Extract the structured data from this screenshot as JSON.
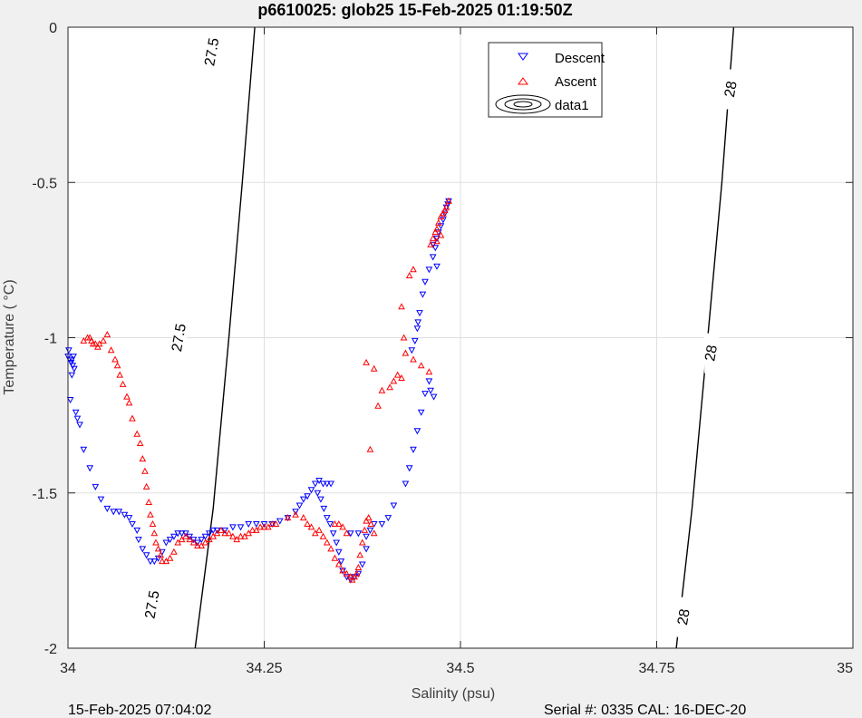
{
  "chart_data": {
    "type": "scatter",
    "title": "p6610025: glob25 15-Feb-2025 01:19:50Z",
    "xlabel": "Salinity (psu)",
    "ylabel": "Temperature (   °C)",
    "xlim": [
      34,
      35
    ],
    "ylim": [
      -2,
      0
    ],
    "x_ticks": [
      34,
      34.25,
      34.5,
      34.75,
      35
    ],
    "x_tick_labels": [
      "34",
      "34.25",
      "34.5",
      "34.75",
      "35"
    ],
    "y_ticks": [
      0,
      -0.5,
      -1,
      -1.5,
      -2
    ],
    "y_tick_labels": [
      "0",
      "-0.5",
      "-1",
      "-1.5",
      "-2"
    ],
    "grid": true,
    "legend_position": "top-right",
    "legend": [
      "Descent",
      "Ascent",
      "data1"
    ],
    "series": [
      {
        "name": "Descent",
        "marker": "triangle-down",
        "color": "#0000ff",
        "points": [
          [
            34.0,
            -1.06
          ],
          [
            34.002,
            -1.07
          ],
          [
            34.004,
            -1.08
          ],
          [
            34.003,
            -1.2
          ],
          [
            34.005,
            -1.07
          ],
          [
            34.006,
            -1.09
          ],
          [
            34.001,
            -1.04
          ],
          [
            34.007,
            -1.06
          ],
          [
            34.008,
            -1.1
          ],
          [
            34.005,
            -1.12
          ],
          [
            34.01,
            -1.24
          ],
          [
            34.012,
            -1.26
          ],
          [
            34.015,
            -1.28
          ],
          [
            34.02,
            -1.36
          ],
          [
            34.028,
            -1.42
          ],
          [
            34.035,
            -1.48
          ],
          [
            34.042,
            -1.52
          ],
          [
            34.05,
            -1.55
          ],
          [
            34.058,
            -1.56
          ],
          [
            34.065,
            -1.56
          ],
          [
            34.072,
            -1.57
          ],
          [
            34.078,
            -1.58
          ],
          [
            34.082,
            -1.6
          ],
          [
            34.088,
            -1.62
          ],
          [
            34.09,
            -1.65
          ],
          [
            34.095,
            -1.68
          ],
          [
            34.1,
            -1.7
          ],
          [
            34.105,
            -1.72
          ],
          [
            34.11,
            -1.72
          ],
          [
            34.115,
            -1.71
          ],
          [
            34.12,
            -1.69
          ],
          [
            34.125,
            -1.66
          ],
          [
            34.13,
            -1.65
          ],
          [
            34.135,
            -1.64
          ],
          [
            34.14,
            -1.63
          ],
          [
            34.145,
            -1.63
          ],
          [
            34.15,
            -1.63
          ],
          [
            34.155,
            -1.64
          ],
          [
            34.16,
            -1.65
          ],
          [
            34.165,
            -1.66
          ],
          [
            34.17,
            -1.65
          ],
          [
            34.175,
            -1.64
          ],
          [
            34.18,
            -1.63
          ],
          [
            34.185,
            -1.62
          ],
          [
            34.19,
            -1.62
          ],
          [
            34.2,
            -1.62
          ],
          [
            34.21,
            -1.61
          ],
          [
            34.22,
            -1.61
          ],
          [
            34.23,
            -1.6
          ],
          [
            34.24,
            -1.6
          ],
          [
            34.25,
            -1.6
          ],
          [
            34.26,
            -1.6
          ],
          [
            34.27,
            -1.59
          ],
          [
            34.28,
            -1.58
          ],
          [
            34.29,
            -1.56
          ],
          [
            34.295,
            -1.54
          ],
          [
            34.3,
            -1.52
          ],
          [
            34.305,
            -1.51
          ],
          [
            34.31,
            -1.49
          ],
          [
            34.315,
            -1.47
          ],
          [
            34.32,
            -1.46
          ],
          [
            34.325,
            -1.47
          ],
          [
            34.33,
            -1.47
          ],
          [
            34.335,
            -1.47
          ],
          [
            34.318,
            -1.5
          ],
          [
            34.322,
            -1.52
          ],
          [
            34.326,
            -1.55
          ],
          [
            34.33,
            -1.58
          ],
          [
            34.334,
            -1.6
          ],
          [
            34.338,
            -1.63
          ],
          [
            34.342,
            -1.66
          ],
          [
            34.345,
            -1.69
          ],
          [
            34.348,
            -1.72
          ],
          [
            34.35,
            -1.75
          ],
          [
            34.355,
            -1.77
          ],
          [
            34.36,
            -1.78
          ],
          [
            34.365,
            -1.77
          ],
          [
            34.37,
            -1.76
          ],
          [
            34.375,
            -1.73
          ],
          [
            34.38,
            -1.68
          ],
          [
            34.385,
            -1.62
          ],
          [
            34.39,
            -1.6
          ],
          [
            34.36,
            -1.63
          ],
          [
            34.37,
            -1.63
          ],
          [
            34.38,
            -1.64
          ],
          [
            34.4,
            -1.6
          ],
          [
            34.408,
            -1.58
          ],
          [
            34.415,
            -1.54
          ],
          [
            34.43,
            -1.47
          ],
          [
            34.435,
            -1.42
          ],
          [
            34.44,
            -1.36
          ],
          [
            34.445,
            -1.3
          ],
          [
            34.45,
            -1.24
          ],
          [
            34.455,
            -1.18
          ],
          [
            34.46,
            -1.14
          ],
          [
            34.438,
            -1.04
          ],
          [
            34.442,
            -1.01
          ],
          [
            34.445,
            -0.97
          ],
          [
            34.446,
            -0.95
          ],
          [
            34.448,
            -0.92
          ],
          [
            34.452,
            -0.86
          ],
          [
            34.455,
            -0.82
          ],
          [
            34.46,
            -0.78
          ],
          [
            34.465,
            -0.74
          ],
          [
            34.468,
            -0.71
          ],
          [
            34.47,
            -0.68
          ],
          [
            34.472,
            -0.66
          ],
          [
            34.475,
            -0.64
          ],
          [
            34.478,
            -0.62
          ],
          [
            34.48,
            -0.6
          ],
          [
            34.482,
            -0.58
          ],
          [
            34.484,
            -0.57
          ],
          [
            34.485,
            -0.56
          ],
          [
            34.47,
            -0.77
          ],
          [
            34.465,
            -0.7
          ],
          [
            34.466,
            -1.19
          ],
          [
            34.462,
            -1.17
          ]
        ]
      },
      {
        "name": "Ascent",
        "marker": "triangle-up",
        "color": "#ff0000",
        "points": [
          [
            34.02,
            -1.01
          ],
          [
            34.025,
            -1.0
          ],
          [
            34.028,
            -1.0
          ],
          [
            34.03,
            -1.01
          ],
          [
            34.032,
            -1.02
          ],
          [
            34.035,
            -1.02
          ],
          [
            34.038,
            -1.03
          ],
          [
            34.04,
            -1.02
          ],
          [
            34.045,
            -1.01
          ],
          [
            34.05,
            -0.99
          ],
          [
            34.055,
            -1.04
          ],
          [
            34.06,
            -1.07
          ],
          [
            34.063,
            -1.09
          ],
          [
            34.066,
            -1.12
          ],
          [
            34.07,
            -1.15
          ],
          [
            34.075,
            -1.19
          ],
          [
            34.078,
            -1.21
          ],
          [
            34.082,
            -1.26
          ],
          [
            34.088,
            -1.31
          ],
          [
            34.092,
            -1.34
          ],
          [
            34.095,
            -1.39
          ],
          [
            34.098,
            -1.43
          ],
          [
            34.1,
            -1.48
          ],
          [
            34.103,
            -1.53
          ],
          [
            34.105,
            -1.57
          ],
          [
            34.108,
            -1.6
          ],
          [
            34.11,
            -1.63
          ],
          [
            34.112,
            -1.66
          ],
          [
            34.115,
            -1.68
          ],
          [
            34.118,
            -1.7
          ],
          [
            34.12,
            -1.72
          ],
          [
            34.125,
            -1.72
          ],
          [
            34.13,
            -1.71
          ],
          [
            34.135,
            -1.69
          ],
          [
            34.14,
            -1.66
          ],
          [
            34.145,
            -1.65
          ],
          [
            34.15,
            -1.64
          ],
          [
            34.155,
            -1.65
          ],
          [
            34.16,
            -1.66
          ],
          [
            34.165,
            -1.67
          ],
          [
            34.17,
            -1.67
          ],
          [
            34.175,
            -1.66
          ],
          [
            34.18,
            -1.65
          ],
          [
            34.185,
            -1.64
          ],
          [
            34.19,
            -1.63
          ],
          [
            34.195,
            -1.62
          ],
          [
            34.2,
            -1.63
          ],
          [
            34.205,
            -1.63
          ],
          [
            34.21,
            -1.64
          ],
          [
            34.215,
            -1.65
          ],
          [
            34.22,
            -1.64
          ],
          [
            34.225,
            -1.64
          ],
          [
            34.23,
            -1.63
          ],
          [
            34.235,
            -1.62
          ],
          [
            34.24,
            -1.62
          ],
          [
            34.245,
            -1.61
          ],
          [
            34.25,
            -1.61
          ],
          [
            34.255,
            -1.61
          ],
          [
            34.26,
            -1.6
          ],
          [
            34.265,
            -1.6
          ],
          [
            34.28,
            -1.58
          ],
          [
            34.29,
            -1.57
          ],
          [
            34.3,
            -1.58
          ],
          [
            34.305,
            -1.6
          ],
          [
            34.31,
            -1.61
          ],
          [
            34.315,
            -1.63
          ],
          [
            34.32,
            -1.62
          ],
          [
            34.325,
            -1.64
          ],
          [
            34.33,
            -1.66
          ],
          [
            34.335,
            -1.68
          ],
          [
            34.34,
            -1.71
          ],
          [
            34.345,
            -1.73
          ],
          [
            34.35,
            -1.75
          ],
          [
            34.355,
            -1.76
          ],
          [
            34.36,
            -1.77
          ],
          [
            34.362,
            -1.78
          ],
          [
            34.365,
            -1.77
          ],
          [
            34.368,
            -1.76
          ],
          [
            34.37,
            -1.74
          ],
          [
            34.372,
            -1.7
          ],
          [
            34.375,
            -1.66
          ],
          [
            34.378,
            -1.62
          ],
          [
            34.38,
            -1.59
          ],
          [
            34.383,
            -1.58
          ],
          [
            34.386,
            -1.6
          ],
          [
            34.39,
            -1.63
          ],
          [
            34.34,
            -1.6
          ],
          [
            34.345,
            -1.6
          ],
          [
            34.35,
            -1.61
          ],
          [
            34.355,
            -1.63
          ],
          [
            34.385,
            -1.36
          ],
          [
            34.395,
            -1.22
          ],
          [
            34.4,
            -1.17
          ],
          [
            34.38,
            -1.08
          ],
          [
            34.39,
            -1.1
          ],
          [
            34.41,
            -1.16
          ],
          [
            34.415,
            -1.14
          ],
          [
            34.42,
            -1.12
          ],
          [
            34.425,
            -1.13
          ],
          [
            34.43,
            -1.05
          ],
          [
            34.428,
            -1.0
          ],
          [
            34.425,
            -0.9
          ],
          [
            34.435,
            -0.8
          ],
          [
            34.44,
            -0.78
          ],
          [
            34.44,
            -1.07
          ],
          [
            34.45,
            -1.09
          ],
          [
            34.46,
            -1.11
          ],
          [
            34.462,
            -0.7
          ],
          [
            34.465,
            -0.68
          ],
          [
            34.468,
            -0.66
          ],
          [
            34.47,
            -0.65
          ],
          [
            34.472,
            -0.63
          ],
          [
            34.475,
            -0.61
          ],
          [
            34.478,
            -0.6
          ],
          [
            34.48,
            -0.59
          ],
          [
            34.482,
            -0.58
          ],
          [
            34.485,
            -0.56
          ],
          [
            34.47,
            -0.69
          ],
          [
            34.475,
            -0.67
          ]
        ]
      }
    ],
    "contours": [
      {
        "level": "27.5",
        "points": [
          [
            34.162,
            -2.0
          ],
          [
            34.185,
            -1.55
          ],
          [
            34.205,
            -1.0
          ],
          [
            34.222,
            -0.5
          ],
          [
            34.238,
            0.0
          ]
        ],
        "labels": [
          {
            "text": "27.5",
            "x": 34.184,
            "y": -0.08
          },
          {
            "text": "27.5",
            "x": 34.142,
            "y": -1.0
          },
          {
            "text": "27.5",
            "x": 34.108,
            "y": -1.86
          }
        ]
      },
      {
        "level": "28",
        "points": [
          [
            34.775,
            -2.0
          ],
          [
            34.795,
            -1.55
          ],
          [
            34.815,
            -1.0
          ],
          [
            34.833,
            -0.5
          ],
          [
            34.848,
            0.0
          ]
        ],
        "labels": [
          {
            "text": "28",
            "x": 34.845,
            "y": -0.2
          },
          {
            "text": "28",
            "x": 34.82,
            "y": -1.05
          },
          {
            "text": "28",
            "x": 34.785,
            "y": -1.9
          }
        ]
      }
    ],
    "footer_left": "15-Feb-2025 07:04:02",
    "footer_right": "Serial #: 0335  CAL: 16-DEC-20"
  }
}
